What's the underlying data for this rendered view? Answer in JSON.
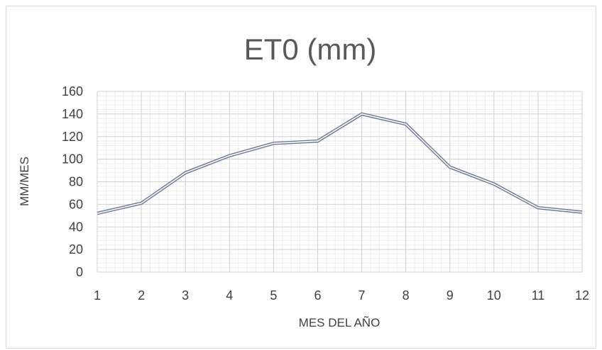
{
  "chart_data": {
    "type": "line",
    "title": "ET0 (mm)",
    "xlabel": "MES DEL AÑO",
    "ylabel": "MM/MES",
    "categories": [
      "1",
      "2",
      "3",
      "4",
      "5",
      "6",
      "7",
      "8",
      "9",
      "10",
      "11",
      "12"
    ],
    "series": [
      {
        "values": [
          52,
          61,
          88,
          103,
          114,
          116,
          140,
          131,
          93,
          78,
          57,
          53
        ]
      }
    ],
    "ylim": [
      0,
      160
    ],
    "yticks": [
      "0",
      "20",
      "40",
      "60",
      "80",
      "100",
      "120",
      "140",
      "160"
    ],
    "grid": true,
    "minor_grid": true,
    "legend": "none",
    "line_color": "#6f7a94"
  }
}
